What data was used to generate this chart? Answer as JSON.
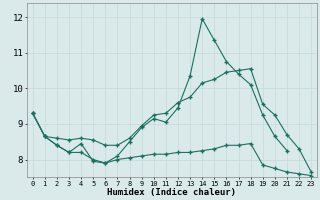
{
  "x": [
    0,
    1,
    2,
    3,
    4,
    5,
    6,
    7,
    8,
    9,
    10,
    11,
    12,
    13,
    14,
    15,
    16,
    17,
    18,
    19,
    20,
    21,
    22,
    23
  ],
  "line_jagged": [
    9.3,
    8.65,
    8.4,
    8.2,
    8.45,
    7.95,
    7.9,
    8.1,
    8.5,
    8.9,
    9.15,
    9.05,
    9.45,
    10.35,
    11.95,
    11.35,
    10.75,
    10.4,
    10.1,
    9.25,
    8.65,
    8.25,
    null,
    null
  ],
  "line_upper": [
    9.3,
    8.65,
    8.6,
    8.55,
    8.6,
    8.55,
    8.4,
    8.4,
    8.6,
    8.95,
    9.25,
    9.3,
    9.6,
    9.75,
    10.15,
    10.25,
    10.45,
    10.5,
    10.55,
    9.55,
    9.25,
    8.7,
    8.3,
    7.65
  ],
  "line_lower": [
    9.3,
    8.65,
    8.4,
    8.2,
    8.2,
    8.0,
    7.9,
    8.0,
    8.05,
    8.1,
    8.15,
    8.15,
    8.2,
    8.2,
    8.25,
    8.3,
    8.4,
    8.4,
    8.45,
    7.85,
    7.75,
    7.65,
    7.6,
    7.55
  ],
  "bg_color": "#daeaea",
  "grid_major_color": "#c8dcdc",
  "grid_minor_color": "#daeaea",
  "line_color": "#1a7060",
  "ylabel_ticks": [
    8,
    9,
    10,
    11,
    12
  ],
  "xlabel_ticks": [
    0,
    1,
    2,
    3,
    4,
    5,
    6,
    7,
    8,
    9,
    10,
    11,
    12,
    13,
    14,
    15,
    16,
    17,
    18,
    19,
    20,
    21,
    22,
    23
  ],
  "xlabel": "Humidex (Indice chaleur)",
  "xlim": [
    -0.5,
    23.5
  ],
  "ylim": [
    7.5,
    12.4
  ]
}
